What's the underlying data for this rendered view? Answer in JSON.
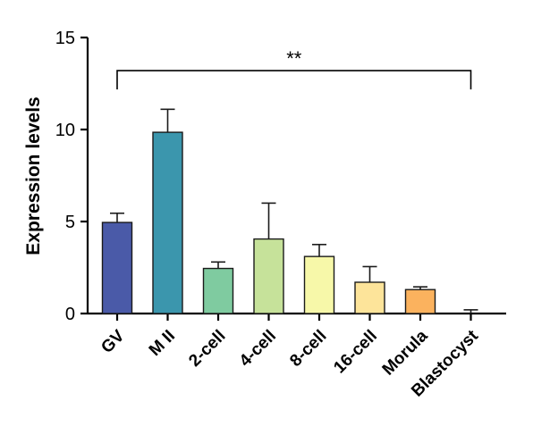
{
  "chart_data": {
    "type": "bar",
    "title": "",
    "xlabel": "",
    "ylabel": "Expression levels",
    "ylim": [
      0,
      15
    ],
    "yticks": [
      0,
      5,
      10,
      15
    ],
    "grid": false,
    "legend": "none",
    "categories": [
      "GV",
      "M II",
      "2-cell",
      "4-cell",
      "8-cell",
      "16-cell",
      "Morula",
      "Blastocyst"
    ],
    "values": [
      4.95,
      9.85,
      2.45,
      4.05,
      3.1,
      1.7,
      1.3,
      0.0
    ],
    "errors": [
      0.5,
      1.25,
      0.35,
      1.95,
      0.65,
      0.85,
      0.15,
      0.2
    ],
    "colors": [
      "#4a5aa8",
      "#3b96ad",
      "#7fcba0",
      "#c6e29a",
      "#f7f8a9",
      "#fde49a",
      "#fbb25e",
      "#cccccc"
    ],
    "annotation": {
      "text": "**",
      "from": "GV",
      "to": "Blastocyst",
      "y": 13.2
    }
  }
}
